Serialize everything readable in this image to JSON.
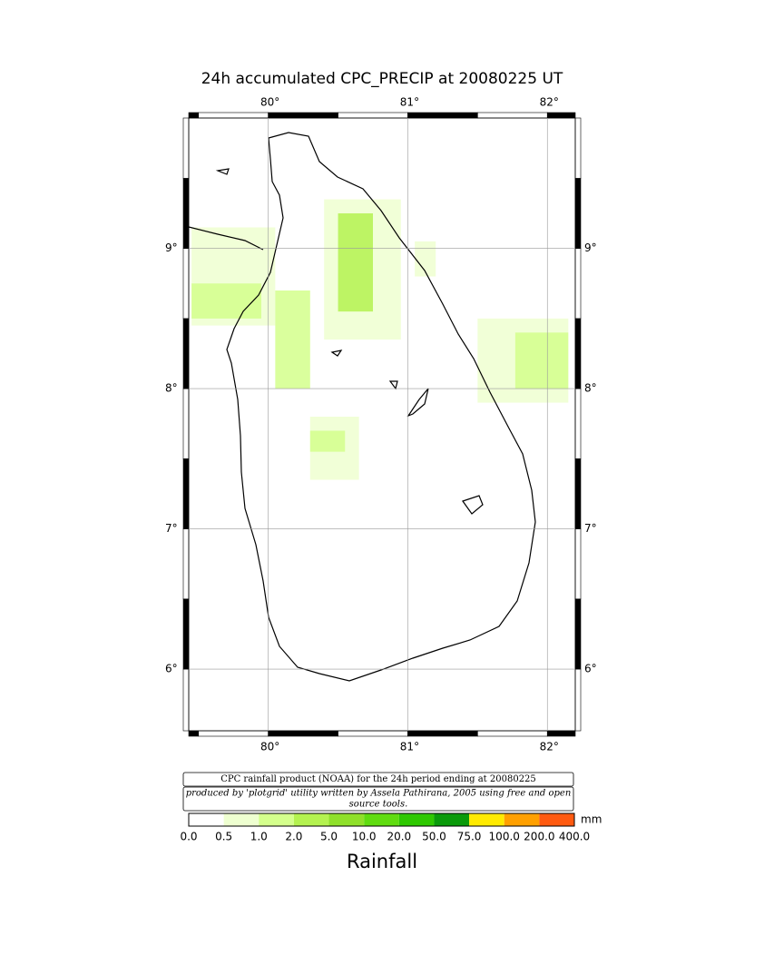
{
  "title": "24h accumulated CPC_PRECIP  at 20080225 UT",
  "map": {
    "xlim": [
      79.43,
      82.2
    ],
    "ylim": [
      5.56,
      9.93
    ],
    "grid": true,
    "xticks": [
      {
        "value": 80,
        "label": "80°"
      },
      {
        "value": 81,
        "label": "81°"
      },
      {
        "value": 82,
        "label": "82°"
      }
    ],
    "yticks": [
      {
        "value": 9,
        "label": "9°"
      },
      {
        "value": 8,
        "label": "8°"
      },
      {
        "value": 7,
        "label": "7°"
      },
      {
        "value": 6,
        "label": "6°"
      }
    ],
    "rain_cells": [
      {
        "lon": [
          79.45,
          80.05
        ],
        "lat": [
          8.45,
          9.15
        ],
        "value": 0.7
      },
      {
        "lon": [
          79.45,
          79.95
        ],
        "lat": [
          8.5,
          8.75
        ],
        "value": 1.5
      },
      {
        "lon": [
          80.05,
          80.3
        ],
        "lat": [
          8.0,
          8.7
        ],
        "value": 1.5
      },
      {
        "lon": [
          80.4,
          80.95
        ],
        "lat": [
          8.35,
          9.35
        ],
        "value": 0.8
      },
      {
        "lon": [
          80.5,
          80.75
        ],
        "lat": [
          8.55,
          9.25
        ],
        "value": 2.2
      },
      {
        "lon": [
          81.05,
          81.2
        ],
        "lat": [
          8.8,
          9.05
        ],
        "value": 0.7
      },
      {
        "lon": [
          81.5,
          82.15
        ],
        "lat": [
          7.9,
          8.5
        ],
        "value": 0.8
      },
      {
        "lon": [
          81.77,
          82.15
        ],
        "lat": [
          8.0,
          8.4
        ],
        "value": 1.8
      },
      {
        "lon": [
          80.3,
          80.65
        ],
        "lat": [
          7.35,
          7.8
        ],
        "value": 0.7
      },
      {
        "lon": [
          80.3,
          80.55
        ],
        "lat": [
          7.55,
          7.7
        ],
        "value": 1.2
      }
    ]
  },
  "caption": {
    "line": "CPC rainfall product (NOAA) for the 24h period ending at 20080225",
    "credit": [
      "produced by 'plotgrid' utility written by Assela Pathirana, 2005 using free and open",
      "source tools."
    ]
  },
  "colorbar": {
    "levels": [
      {
        "value": 0,
        "label": "0.0"
      },
      {
        "value": 0.5,
        "label": "0.5"
      },
      {
        "value": 1,
        "label": "1.0"
      },
      {
        "value": 2,
        "label": "2.0"
      },
      {
        "value": 5,
        "label": "5.0"
      },
      {
        "value": 10,
        "label": "10.0"
      },
      {
        "value": 20,
        "label": "20.0"
      },
      {
        "value": 50,
        "label": "50.0"
      },
      {
        "value": 75,
        "label": "75.0"
      },
      {
        "value": 100,
        "label": "100.0"
      },
      {
        "value": 200,
        "label": "200.0"
      },
      {
        "value": 400,
        "label": "400.0"
      }
    ],
    "colors": [
      "#ffffff",
      "#eeffd0",
      "#d4ff8c",
      "#b4f250",
      "#8fe02a",
      "#60dc10",
      "#2ec800",
      "#0a9a0a",
      "#ffea00",
      "#ffa000",
      "#ff5a10"
    ],
    "unit": "mm",
    "label": "Rainfall"
  }
}
